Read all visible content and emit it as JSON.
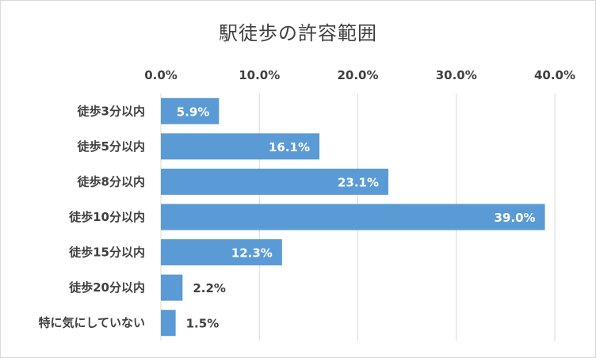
{
  "chart_data": {
    "type": "bar",
    "orientation": "horizontal",
    "title": "駅徒歩の許容範囲",
    "categories": [
      "徒歩3分以内",
      "徒歩5分以内",
      "徒歩8分以内",
      "徒歩10分以内",
      "徒歩15分以内",
      "徒歩20分以内",
      "特に気にしていない"
    ],
    "values": [
      5.9,
      16.1,
      23.1,
      39.0,
      12.3,
      2.2,
      1.5
    ],
    "value_labels": [
      "5.9%",
      "16.1%",
      "23.1%",
      "39.0%",
      "12.3%",
      "2.2%",
      "1.5%"
    ],
    "xlim": [
      0,
      40
    ],
    "ticks": [
      "0.0%",
      "10.0%",
      "20.0%",
      "30.0%",
      "40.0%"
    ],
    "axis_position": "top",
    "grid": true,
    "legend": "none",
    "colors": {
      "bar": "#5b9bd5",
      "grid": "#d9d9d9",
      "text": "#404040",
      "label_inside": "#ffffff"
    }
  }
}
